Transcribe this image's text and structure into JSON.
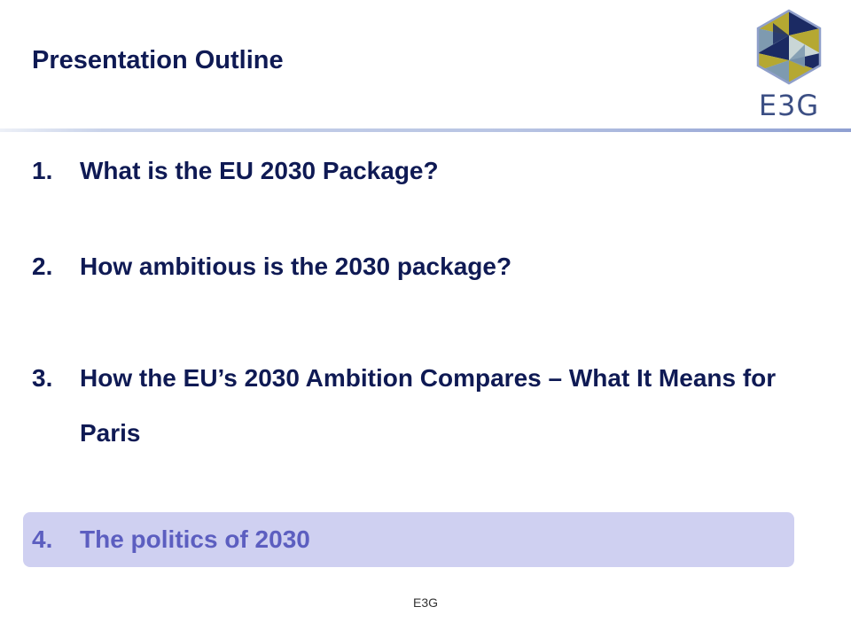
{
  "header": {
    "title": "Presentation Outline"
  },
  "logo": {
    "text": "E3G",
    "colors": {
      "gold": "#b5a832",
      "navy": "#1b2a63",
      "slate": "#7e9ab0",
      "pale": "#c9d6d6",
      "outline": "#8f9fca"
    }
  },
  "outline": {
    "items": [
      {
        "number": "1.",
        "text": "What is the EU 2030 Package?"
      },
      {
        "number": "2.",
        "text": "How ambitious is the 2030 package?"
      },
      {
        "number": "3.",
        "text": "How the EU’s 2030 Ambition Compares – What It Means for Paris"
      },
      {
        "number": "4.",
        "text": "The politics of 2030",
        "highlighted": true
      }
    ]
  },
  "footer": {
    "text": "E3G"
  },
  "colors": {
    "title": "#0f1a54",
    "highlight_bg": "#cfd0f1",
    "highlight_text": "#5c5ec0"
  }
}
